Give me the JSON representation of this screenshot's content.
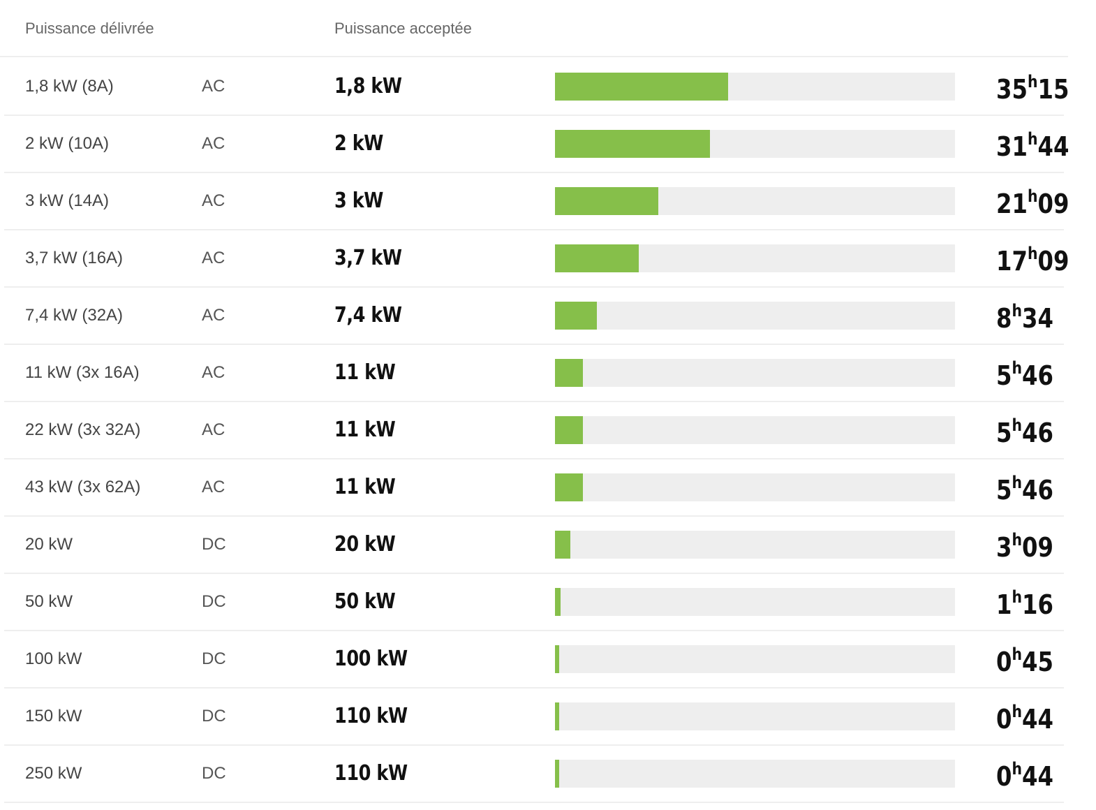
{
  "header": {
    "delivered_label": "Puissance délivrée",
    "accepted_label": "Puissance acceptée"
  },
  "colors": {
    "bar_fill": "#86bf4a",
    "bar_track": "#eeeeee",
    "row_divider": "#eeeeee"
  },
  "time_separator": "h",
  "rows": [
    {
      "delivered": "1,8 kW (8A)",
      "current": "AC",
      "accepted": "1,8 kW",
      "hours": "35",
      "minutes": "15",
      "bar_fraction": 0.433
    },
    {
      "delivered": "2 kW (10A)",
      "current": "AC",
      "accepted": "2 kW",
      "hours": "31",
      "minutes": "44",
      "bar_fraction": 0.388
    },
    {
      "delivered": "3 kW (14A)",
      "current": "AC",
      "accepted": "3 kW",
      "hours": "21",
      "minutes": "09",
      "bar_fraction": 0.258
    },
    {
      "delivered": "3,7 kW (16A)",
      "current": "AC",
      "accepted": "3,7 kW",
      "hours": "17",
      "minutes": "09",
      "bar_fraction": 0.209
    },
    {
      "delivered": "7,4 kW (32A)",
      "current": "AC",
      "accepted": "7,4 kW",
      "hours": "8",
      "minutes": "34",
      "bar_fraction": 0.105
    },
    {
      "delivered": "11 kW (3x 16A)",
      "current": "AC",
      "accepted": "11 kW",
      "hours": "5",
      "minutes": "46",
      "bar_fraction": 0.07
    },
    {
      "delivered": "22 kW (3x 32A)",
      "current": "AC",
      "accepted": "11 kW",
      "hours": "5",
      "minutes": "46",
      "bar_fraction": 0.07
    },
    {
      "delivered": "43 kW (3x 62A)",
      "current": "AC",
      "accepted": "11 kW",
      "hours": "5",
      "minutes": "46",
      "bar_fraction": 0.07
    },
    {
      "delivered": "20 kW",
      "current": "DC",
      "accepted": "20 kW",
      "hours": "3",
      "minutes": "09",
      "bar_fraction": 0.038
    },
    {
      "delivered": "50 kW",
      "current": "DC",
      "accepted": "50 kW",
      "hours": "1",
      "minutes": "16",
      "bar_fraction": 0.014
    },
    {
      "delivered": "100 kW",
      "current": "DC",
      "accepted": "100 kW",
      "hours": "0",
      "minutes": "45",
      "bar_fraction": 0.01
    },
    {
      "delivered": "150 kW",
      "current": "DC",
      "accepted": "110 kW",
      "hours": "0",
      "minutes": "44",
      "bar_fraction": 0.01
    },
    {
      "delivered": "250 kW",
      "current": "DC",
      "accepted": "110 kW",
      "hours": "0",
      "minutes": "44",
      "bar_fraction": 0.01
    }
  ]
}
